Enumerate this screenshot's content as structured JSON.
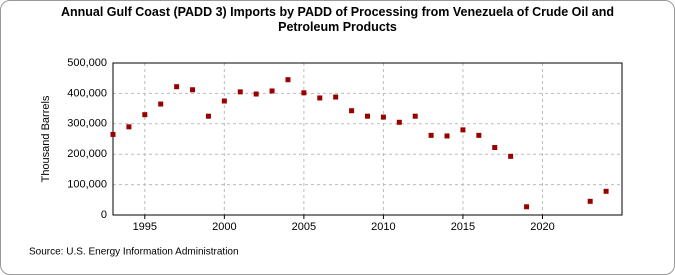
{
  "chart_data": {
    "type": "scatter",
    "title": "Annual Gulf Coast (PADD 3) Imports by PADD of Processing from Venezuela of Crude Oil and Petroleum Products",
    "y_label": "Thousand Barrels",
    "source": "Source: U.S. Energy Information Administration",
    "series": [
      {
        "name": "Imports",
        "color": "#990000",
        "x": [
          1993,
          1994,
          1995,
          1996,
          1997,
          1998,
          1999,
          2000,
          2001,
          2002,
          2003,
          2004,
          2005,
          2006,
          2007,
          2008,
          2009,
          2010,
          2011,
          2012,
          2013,
          2014,
          2015,
          2016,
          2017,
          2018,
          2019,
          2023,
          2024
        ],
        "values": [
          265000,
          290000,
          330000,
          365000,
          422000,
          412000,
          325000,
          375000,
          405000,
          398000,
          408000,
          445000,
          402000,
          385000,
          388000,
          343000,
          325000,
          322000,
          305000,
          325000,
          262000,
          260000,
          280000,
          262000,
          222000,
          193000,
          27000,
          45000,
          78000
        ]
      }
    ],
    "xlim": [
      1993,
      2025
    ],
    "xticks": [
      1995,
      2000,
      2005,
      2010,
      2015,
      2020
    ],
    "ylim": [
      0,
      500000
    ],
    "yticks": [
      0,
      {
        "value": 100000,
        "label": "100,000"
      },
      {
        "value": 200000,
        "label": "200,000"
      },
      {
        "value": 300000,
        "label": "300,000"
      },
      {
        "value": 400000,
        "label": "400,000"
      },
      {
        "value": 500000,
        "label": "500,000"
      }
    ],
    "grid": true
  }
}
